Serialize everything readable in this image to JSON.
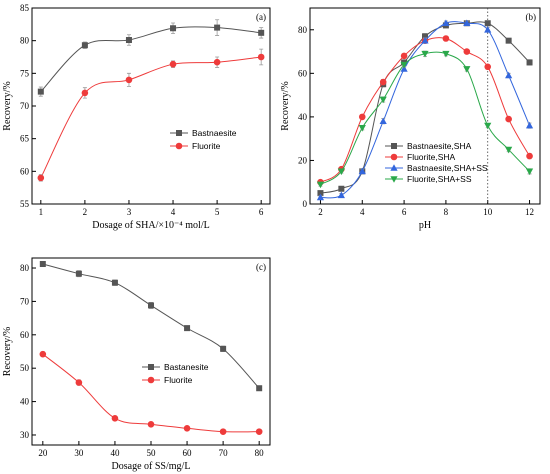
{
  "chart_data": [
    {
      "id": "a",
      "type": "line",
      "panel_label": "(a)",
      "xlabel": "Dosage of SHA/×10⁻⁴ mol/L",
      "ylabel": "Recovery/%",
      "xlim": [
        0.8,
        6.2
      ],
      "ylim": [
        55,
        85
      ],
      "xticks": [
        1,
        2,
        3,
        4,
        5,
        6
      ],
      "yticks": [
        55,
        60,
        65,
        70,
        75,
        80,
        85
      ],
      "legend_position": "center-right",
      "series": [
        {
          "name": "Bastnaesite",
          "color": "#555555",
          "marker": "square",
          "x": [
            1,
            2,
            3,
            4,
            5,
            6
          ],
          "y": [
            72.2,
            79.3,
            80.1,
            81.9,
            82.0,
            81.2
          ],
          "err": [
            0.7,
            0.5,
            0.8,
            0.8,
            1.2,
            0.8
          ]
        },
        {
          "name": "Fluorite",
          "color": "#ee3b3b",
          "marker": "circle",
          "x": [
            1,
            2,
            3,
            4,
            5,
            6
          ],
          "y": [
            59.0,
            72.0,
            74.0,
            76.4,
            76.7,
            77.5
          ],
          "err": [
            0.5,
            0.8,
            1.0,
            0.5,
            0.8,
            1.2
          ]
        }
      ]
    },
    {
      "id": "b",
      "type": "line",
      "panel_label": "(b)",
      "xlabel": "pH",
      "ylabel": "Recovery/%",
      "xlim": [
        1.5,
        12.5
      ],
      "ylim": [
        0,
        90
      ],
      "xticks": [
        2,
        4,
        6,
        8,
        10,
        12
      ],
      "yticks": [
        0,
        20,
        40,
        60,
        80
      ],
      "vline_x": 10,
      "legend_position": "lower-left",
      "series": [
        {
          "name": "Bastnaesite,SHA",
          "color": "#555555",
          "marker": "square",
          "x": [
            2,
            3,
            4,
            5,
            6,
            7,
            8,
            9,
            10,
            11,
            12
          ],
          "y": [
            5,
            7,
            15,
            55,
            65,
            77,
            82,
            83,
            83,
            75,
            65
          ],
          "err": [
            0.8,
            0.8,
            1,
            1.2,
            1,
            1.2,
            1,
            1,
            1,
            1,
            1.2
          ]
        },
        {
          "name": "Fluorite,SHA",
          "color": "#ee3b3b",
          "marker": "circle",
          "x": [
            2,
            3,
            4,
            5,
            6,
            7,
            8,
            9,
            10,
            11,
            12
          ],
          "y": [
            10,
            16,
            40,
            56,
            68,
            75,
            76,
            70,
            63,
            39,
            22
          ],
          "err": [
            0.8,
            0.8,
            1,
            1.2,
            1,
            1.2,
            1,
            1,
            1,
            1,
            1.2
          ]
        },
        {
          "name": "Bastnaesite,SHA+SS",
          "color": "#3366dd",
          "marker": "triangle-up",
          "x": [
            2,
            3,
            4,
            5,
            6,
            7,
            8,
            9,
            10,
            11,
            12
          ],
          "y": [
            3,
            4,
            15,
            38,
            62,
            75,
            83,
            83,
            80,
            59,
            36
          ],
          "err": [
            0.8,
            0.8,
            1,
            1.2,
            1,
            1.2,
            1,
            1,
            1,
            1,
            1.2
          ]
        },
        {
          "name": "Fluorite,SHA+SS",
          "color": "#2aa84a",
          "marker": "triangle-down",
          "x": [
            2,
            3,
            4,
            5,
            6,
            7,
            8,
            9,
            10,
            11,
            12
          ],
          "y": [
            9,
            15,
            35,
            48,
            64,
            69,
            69,
            62,
            36,
            25,
            15
          ],
          "err": [
            0.8,
            0.8,
            1,
            1.2,
            1,
            1.2,
            1,
            1,
            1,
            1,
            1.2
          ]
        }
      ]
    },
    {
      "id": "c",
      "type": "line",
      "panel_label": "(c)",
      "xlabel": "Dosage of SS/mg/L",
      "ylabel": "Recovery/%",
      "xlim": [
        17,
        83
      ],
      "ylim": [
        27,
        83
      ],
      "xticks": [
        20,
        30,
        40,
        50,
        60,
        70,
        80
      ],
      "yticks": [
        30,
        40,
        50,
        60,
        70,
        80
      ],
      "legend_position": "center-right",
      "series": [
        {
          "name": "Bastanesite",
          "color": "#555555",
          "marker": "square",
          "x": [
            20,
            30,
            40,
            50,
            60,
            70,
            80
          ],
          "y": [
            81.2,
            78.3,
            75.6,
            68.8,
            62.0,
            55.8,
            44.0
          ],
          "err": [
            0.7,
            0.9,
            0.8,
            0.9,
            0.6,
            0.8,
            0.7
          ]
        },
        {
          "name": "Fluorite",
          "color": "#ee3b3b",
          "marker": "circle",
          "x": [
            20,
            30,
            40,
            50,
            60,
            70,
            80
          ],
          "y": [
            54.2,
            45.7,
            35.0,
            33.2,
            32.0,
            31.0,
            31.0
          ],
          "err": [
            0.7,
            0.8,
            0.6,
            0.5,
            0.5,
            0.6,
            0.5
          ]
        }
      ]
    }
  ]
}
